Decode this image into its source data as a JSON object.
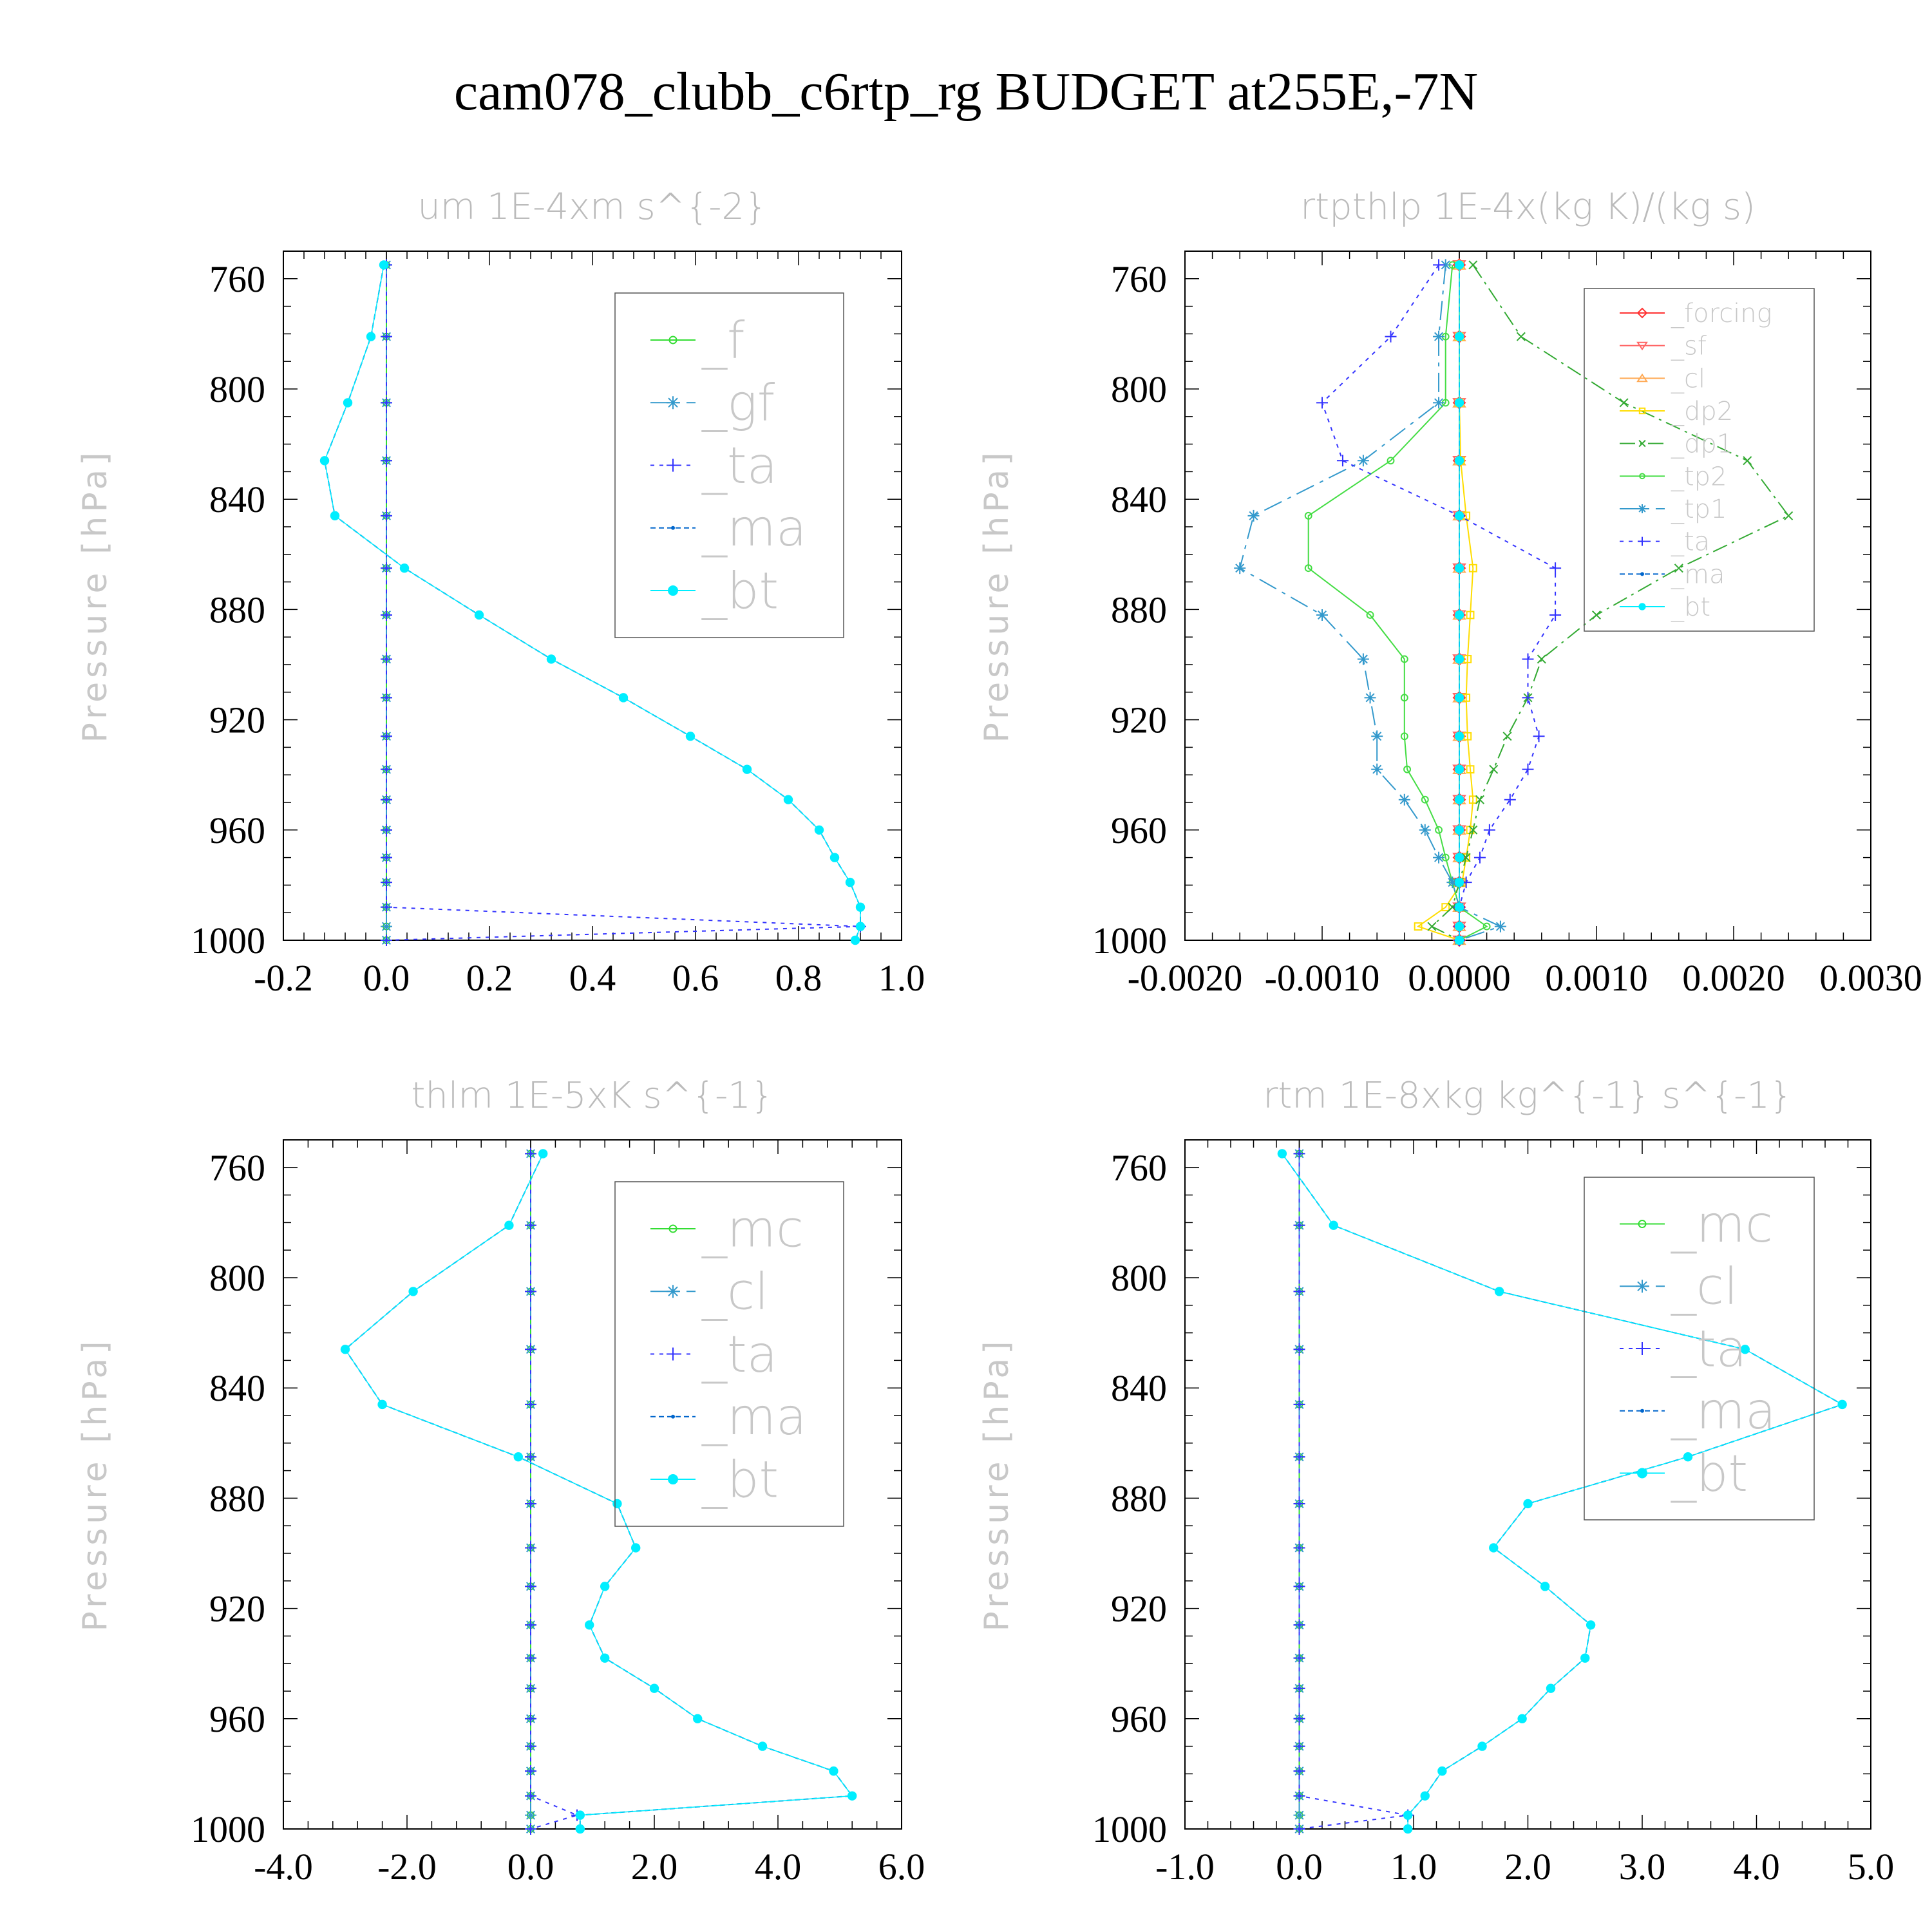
{
  "title": "cam078_clubb_c6rtp_rg  BUDGET at255E,-7N",
  "chart_data": [
    {
      "type": "line",
      "title": "um   1E-4xm s^{-2}",
      "ylabel": "Pressure [hPa]",
      "xlabel": "",
      "xlim": [
        -0.2,
        1.0
      ],
      "ylim": [
        1000,
        750
      ],
      "xticks": [
        "-0.2",
        "0.0",
        "0.2",
        "0.4",
        "0.6",
        "0.8",
        "1.0"
      ],
      "yticks": [
        "760",
        "800",
        "840",
        "880",
        "920",
        "960",
        "1000"
      ],
      "pressure": [
        755,
        781,
        805,
        826,
        846,
        865,
        882,
        898,
        912,
        926,
        938,
        949,
        960,
        970,
        979,
        988,
        995,
        1000
      ],
      "series": [
        {
          "name": "_f",
          "color": "#33dd33",
          "marker": "circle",
          "values": [
            0,
            0,
            0,
            0,
            0,
            0,
            0,
            0,
            0,
            0,
            0,
            0,
            0,
            0,
            0,
            0,
            0,
            0
          ]
        },
        {
          "name": "_gf",
          "color": "#3399cc",
          "marker": "star",
          "values": [
            0,
            0,
            0,
            0,
            0,
            0,
            0,
            0,
            0,
            0,
            0,
            0,
            0,
            0,
            0,
            0,
            0,
            0
          ]
        },
        {
          "name": "_ta",
          "color": "#3333ff",
          "marker": "plus",
          "values": [
            0,
            0,
            0,
            0,
            0,
            0,
            0,
            0,
            0,
            0,
            0,
            0,
            0,
            0,
            0,
            0,
            0.92,
            0
          ]
        },
        {
          "name": "_ma",
          "color": "#0066cc",
          "marker": "dot",
          "values": [
            -0.005,
            -0.03,
            -0.075,
            -0.12,
            -0.1,
            0.035,
            0.18,
            0.32,
            0.46,
            0.59,
            0.7,
            0.78,
            0.84,
            0.87,
            0.9,
            0.92,
            0.92,
            0.91
          ]
        },
        {
          "name": "_bt",
          "color": "#00eeff",
          "marker": "bigdot",
          "values": [
            -0.005,
            -0.03,
            -0.075,
            -0.12,
            -0.1,
            0.035,
            0.18,
            0.32,
            0.46,
            0.59,
            0.7,
            0.78,
            0.84,
            0.87,
            0.9,
            0.92,
            0.92,
            0.91
          ]
        }
      ]
    },
    {
      "type": "line",
      "title": "rtpthlp   1E-4x(kg K)/(kg s)",
      "ylabel": "Pressure [hPa]",
      "xlabel": "",
      "xlim": [
        -0.002,
        0.003
      ],
      "ylim": [
        1000,
        750
      ],
      "xticks": [
        "-0.0020",
        "-0.0010",
        "0.0000",
        "0.0010",
        "0.0020",
        "0.0030"
      ],
      "yticks": [
        "760",
        "800",
        "840",
        "880",
        "920",
        "960",
        "1000"
      ],
      "pressure": [
        755,
        781,
        805,
        826,
        846,
        865,
        882,
        898,
        912,
        926,
        938,
        949,
        960,
        970,
        979,
        988,
        995,
        1000
      ],
      "series": [
        {
          "name": "_forcing",
          "color": "#ff3333",
          "marker": "diamond",
          "values": [
            0,
            0,
            0,
            0,
            0,
            0,
            0,
            0,
            0,
            0,
            0,
            0,
            0,
            0,
            0,
            0,
            0,
            0
          ]
        },
        {
          "name": "_sf",
          "color": "#ff6666",
          "marker": "triangle-down",
          "values": [
            0,
            0,
            0,
            0,
            0,
            0,
            0,
            0,
            0,
            0,
            0,
            0,
            0,
            0,
            0,
            0,
            0,
            0
          ]
        },
        {
          "name": "_cl",
          "color": "#ffaa55",
          "marker": "triangle-up",
          "values": [
            0,
            0,
            0,
            0,
            0,
            0,
            0,
            0,
            0,
            0,
            0,
            0,
            0,
            0,
            0,
            0,
            0,
            0
          ]
        },
        {
          "name": "_dp2",
          "color": "#ffdd00",
          "marker": "square",
          "values": [
            0,
            0,
            0,
            1e-05,
            5e-05,
            0.0001,
            8e-05,
            6e-05,
            5e-05,
            6e-05,
            8e-05,
            0.0001,
            8e-05,
            5e-05,
            2e-05,
            -0.0001,
            -0.0003,
            0
          ]
        },
        {
          "name": "_dp1",
          "color": "#33aa33",
          "marker": "x",
          "values": [
            0.0001,
            0.00045,
            0.0012,
            0.0021,
            0.0024,
            0.0016,
            0.001,
            0.0006,
            0.0005,
            0.00035,
            0.00025,
            0.00015,
            0.0001,
            5e-05,
            0,
            -5e-05,
            -0.0002,
            0
          ]
        },
        {
          "name": "_tp2",
          "color": "#44dd44",
          "marker": "circle",
          "values": [
            -5e-05,
            -0.0001,
            -0.0001,
            -0.0005,
            -0.0011,
            -0.0011,
            -0.00065,
            -0.0004,
            -0.0004,
            -0.0004,
            -0.00038,
            -0.00025,
            -0.00015,
            -0.0001,
            -5e-05,
            0,
            0.0002,
            0
          ]
        },
        {
          "name": "_tp1",
          "color": "#3399cc",
          "marker": "star",
          "values": [
            -0.0001,
            -0.00015,
            -0.00015,
            -0.0007,
            -0.0015,
            -0.0016,
            -0.001,
            -0.0007,
            -0.00065,
            -0.0006,
            -0.0006,
            -0.0004,
            -0.00025,
            -0.00015,
            -5e-05,
            0,
            0.0003,
            0
          ]
        },
        {
          "name": "_ta",
          "color": "#3333ff",
          "marker": "plus",
          "values": [
            -0.00015,
            -0.0005,
            -0.001,
            -0.00085,
            0,
            0.0007,
            0.0007,
            0.0005,
            0.0005,
            0.00058,
            0.0005,
            0.00037,
            0.00022,
            0.00015,
            5e-05,
            0,
            0,
            0
          ]
        },
        {
          "name": "_ma",
          "color": "#0066cc",
          "marker": "dot",
          "values": [
            0,
            0,
            0,
            0,
            0,
            0,
            0,
            0,
            0,
            0,
            0,
            0,
            0,
            0,
            0,
            0,
            0,
            0
          ]
        },
        {
          "name": "_bt",
          "color": "#00eeff",
          "marker": "bigdot",
          "values": [
            0,
            0,
            0,
            0,
            0,
            0,
            0,
            0,
            0,
            0,
            0,
            0,
            0,
            0,
            0,
            0,
            0,
            0
          ]
        }
      ]
    },
    {
      "type": "line",
      "title": "thlm   1E-5xK s^{-1}",
      "ylabel": "Pressure [hPa]",
      "xlabel": "",
      "xlim": [
        -4.0,
        6.0
      ],
      "ylim": [
        1000,
        750
      ],
      "xticks": [
        "-4.0",
        "-2.0",
        "0.0",
        "2.0",
        "4.0",
        "6.0"
      ],
      "yticks": [
        "760",
        "800",
        "840",
        "880",
        "920",
        "960",
        "1000"
      ],
      "pressure": [
        755,
        781,
        805,
        826,
        846,
        865,
        882,
        898,
        912,
        926,
        938,
        949,
        960,
        970,
        979,
        988,
        995,
        1000
      ],
      "series": [
        {
          "name": "_mc",
          "color": "#33dd33",
          "marker": "circle",
          "values": [
            0,
            0,
            0,
            0,
            0,
            0,
            0,
            0,
            0,
            0,
            0,
            0,
            0,
            0,
            0,
            0,
            0,
            0
          ]
        },
        {
          "name": "_cl",
          "color": "#3399cc",
          "marker": "star",
          "values": [
            0,
            0,
            0,
            0,
            0,
            0,
            0,
            0,
            0,
            0,
            0,
            0,
            0,
            0,
            0,
            0,
            0,
            0
          ]
        },
        {
          "name": "_ta",
          "color": "#3333ff",
          "marker": "plus",
          "values": [
            0,
            0,
            0,
            0,
            0,
            0,
            0,
            0,
            0,
            0,
            0,
            0,
            0,
            0,
            0,
            0,
            0.75,
            0
          ]
        },
        {
          "name": "_ma",
          "color": "#0066cc",
          "marker": "dot",
          "values": [
            0.2,
            -0.35,
            -1.9,
            -3.0,
            -2.4,
            -0.2,
            1.4,
            1.7,
            1.2,
            0.95,
            1.2,
            2.0,
            2.7,
            3.75,
            4.9,
            5.2,
            0.8,
            0.8
          ]
        },
        {
          "name": "_bt",
          "color": "#00eeff",
          "marker": "bigdot",
          "values": [
            0.2,
            -0.35,
            -1.9,
            -3.0,
            -2.4,
            -0.2,
            1.4,
            1.7,
            1.2,
            0.95,
            1.2,
            2.0,
            2.7,
            3.75,
            4.9,
            5.2,
            0.8,
            0.8
          ]
        }
      ]
    },
    {
      "type": "line",
      "title": "rtm   1E-8xkg kg^{-1} s^{-1}",
      "ylabel": "Pressure [hPa]",
      "xlabel": "",
      "xlim": [
        -1.0,
        5.0
      ],
      "ylim": [
        1000,
        750
      ],
      "xticks": [
        "-1.0",
        "0.0",
        "1.0",
        "2.0",
        "3.0",
        "4.0",
        "5.0"
      ],
      "yticks": [
        "760",
        "800",
        "840",
        "880",
        "920",
        "960",
        "1000"
      ],
      "pressure": [
        755,
        781,
        805,
        826,
        846,
        865,
        882,
        898,
        912,
        926,
        938,
        949,
        960,
        970,
        979,
        988,
        995,
        1000
      ],
      "series": [
        {
          "name": "_mc",
          "color": "#33dd33",
          "marker": "circle",
          "values": [
            0,
            0,
            0,
            0,
            0,
            0,
            0,
            0,
            0,
            0,
            0,
            0,
            0,
            0,
            0,
            0,
            0,
            0
          ]
        },
        {
          "name": "_cl",
          "color": "#3399cc",
          "marker": "star",
          "values": [
            0,
            0,
            0,
            0,
            0,
            0,
            0,
            0,
            0,
            0,
            0,
            0,
            0,
            0,
            0,
            0,
            0,
            0
          ]
        },
        {
          "name": "_ta",
          "color": "#3333ff",
          "marker": "plus",
          "values": [
            0,
            0,
            0,
            0,
            0,
            0,
            0,
            0,
            0,
            0,
            0,
            0,
            0,
            0,
            0,
            0,
            0.95,
            0
          ]
        },
        {
          "name": "_ma",
          "color": "#0066cc",
          "marker": "dot",
          "values": [
            -0.15,
            0.3,
            1.75,
            3.9,
            4.75,
            3.4,
            2.0,
            1.7,
            2.15,
            2.55,
            2.5,
            2.2,
            1.95,
            1.6,
            1.25,
            1.1,
            0.95,
            0.95
          ]
        },
        {
          "name": "_bt",
          "color": "#00eeff",
          "marker": "bigdot",
          "values": [
            -0.15,
            0.3,
            1.75,
            3.9,
            4.75,
            3.4,
            2.0,
            1.7,
            2.15,
            2.55,
            2.5,
            2.2,
            1.95,
            1.6,
            1.25,
            1.1,
            0.95,
            0.95
          ]
        }
      ]
    }
  ]
}
